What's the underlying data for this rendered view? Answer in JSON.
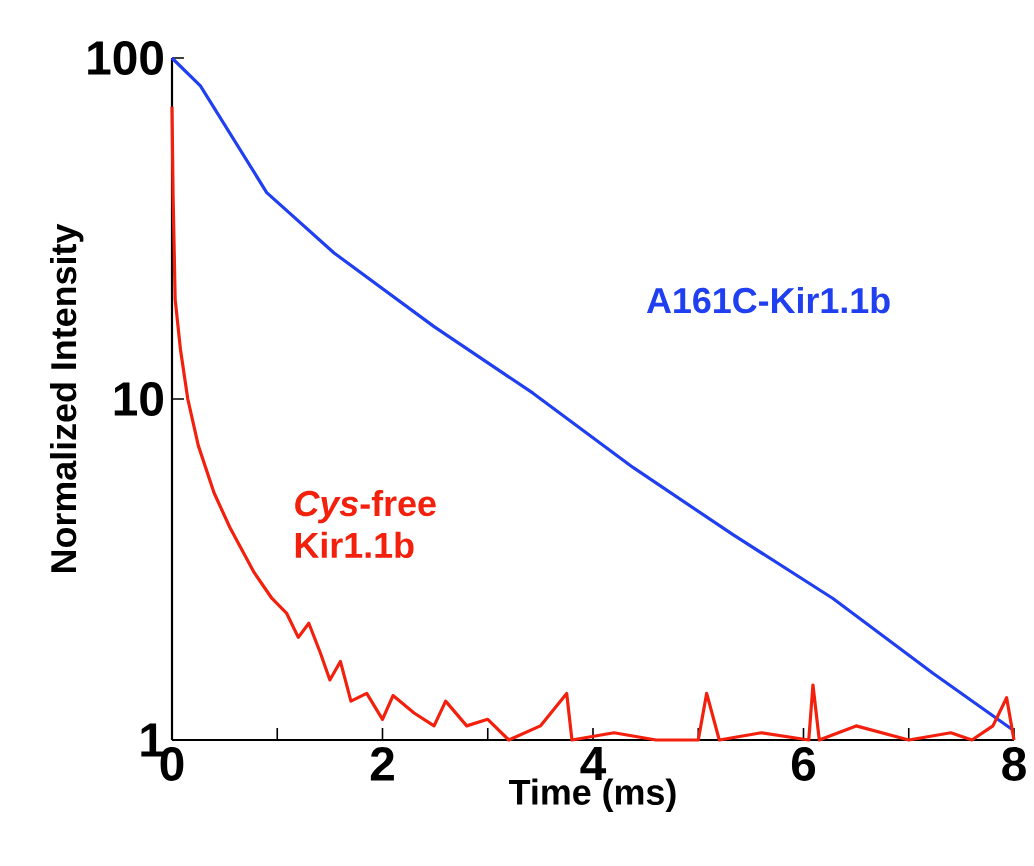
{
  "chart_data": {
    "type": "line",
    "xlabel": "Time (ms)",
    "ylabel": "Normalized Intensity",
    "log": "y",
    "xlim": [
      0,
      8
    ],
    "ylim": [
      1,
      100
    ],
    "xticks": [
      0,
      {
        "value": 1,
        "label": null
      },
      2,
      {
        "value": 3,
        "label": null
      },
      4,
      {
        "value": 5,
        "label": null
      },
      6,
      {
        "value": 7,
        "label": null
      },
      8
    ],
    "yticks": [
      1,
      10,
      100
    ],
    "series": [
      {
        "name": "A161C-Kir1.1b",
        "color": "#1f3ff0",
        "x": [
          0,
          0.27,
          0.9,
          1.54,
          2.49,
          3.43,
          4.38,
          5.33,
          6.28,
          7.23,
          7.99
        ],
        "values": [
          100,
          82.8,
          40.3,
          26.8,
          16.3,
          10.4,
          6.3,
          4.0,
          2.6,
          1.57,
          1.07
        ]
      },
      {
        "name": "*Cys*-free Kir1.1b",
        "color": "#f2200c",
        "x": [
          0,
          0.01,
          0.03,
          0.08,
          0.15,
          0.25,
          0.4,
          0.55,
          0.78,
          0.95,
          1.09,
          1.2,
          1.3,
          1.41,
          1.5,
          1.6,
          1.7,
          1.85,
          2.0,
          2.1,
          2.3,
          2.49,
          2.6,
          2.8,
          3.0,
          3.2,
          3.5,
          3.75,
          3.8,
          4.2,
          4.6,
          5.0,
          5.08,
          5.2,
          5.6,
          6.05,
          6.09,
          6.15,
          6.5,
          7.0,
          7.4,
          7.6,
          7.8,
          7.93,
          8.0
        ],
        "values": [
          72,
          40,
          19.6,
          14,
          10,
          7.3,
          5.3,
          4.2,
          3.1,
          2.6,
          2.35,
          2.0,
          2.2,
          1.8,
          1.5,
          1.7,
          1.3,
          1.37,
          1.15,
          1.35,
          1.2,
          1.1,
          1.3,
          1.1,
          1.15,
          1.0,
          1.1,
          1.37,
          1.0,
          1.05,
          1.0,
          1.0,
          1.37,
          1.0,
          1.05,
          1.0,
          1.45,
          1.0,
          1.1,
          1.0,
          1.05,
          1.0,
          1.1,
          1.33,
          1.0
        ]
      }
    ]
  }
}
